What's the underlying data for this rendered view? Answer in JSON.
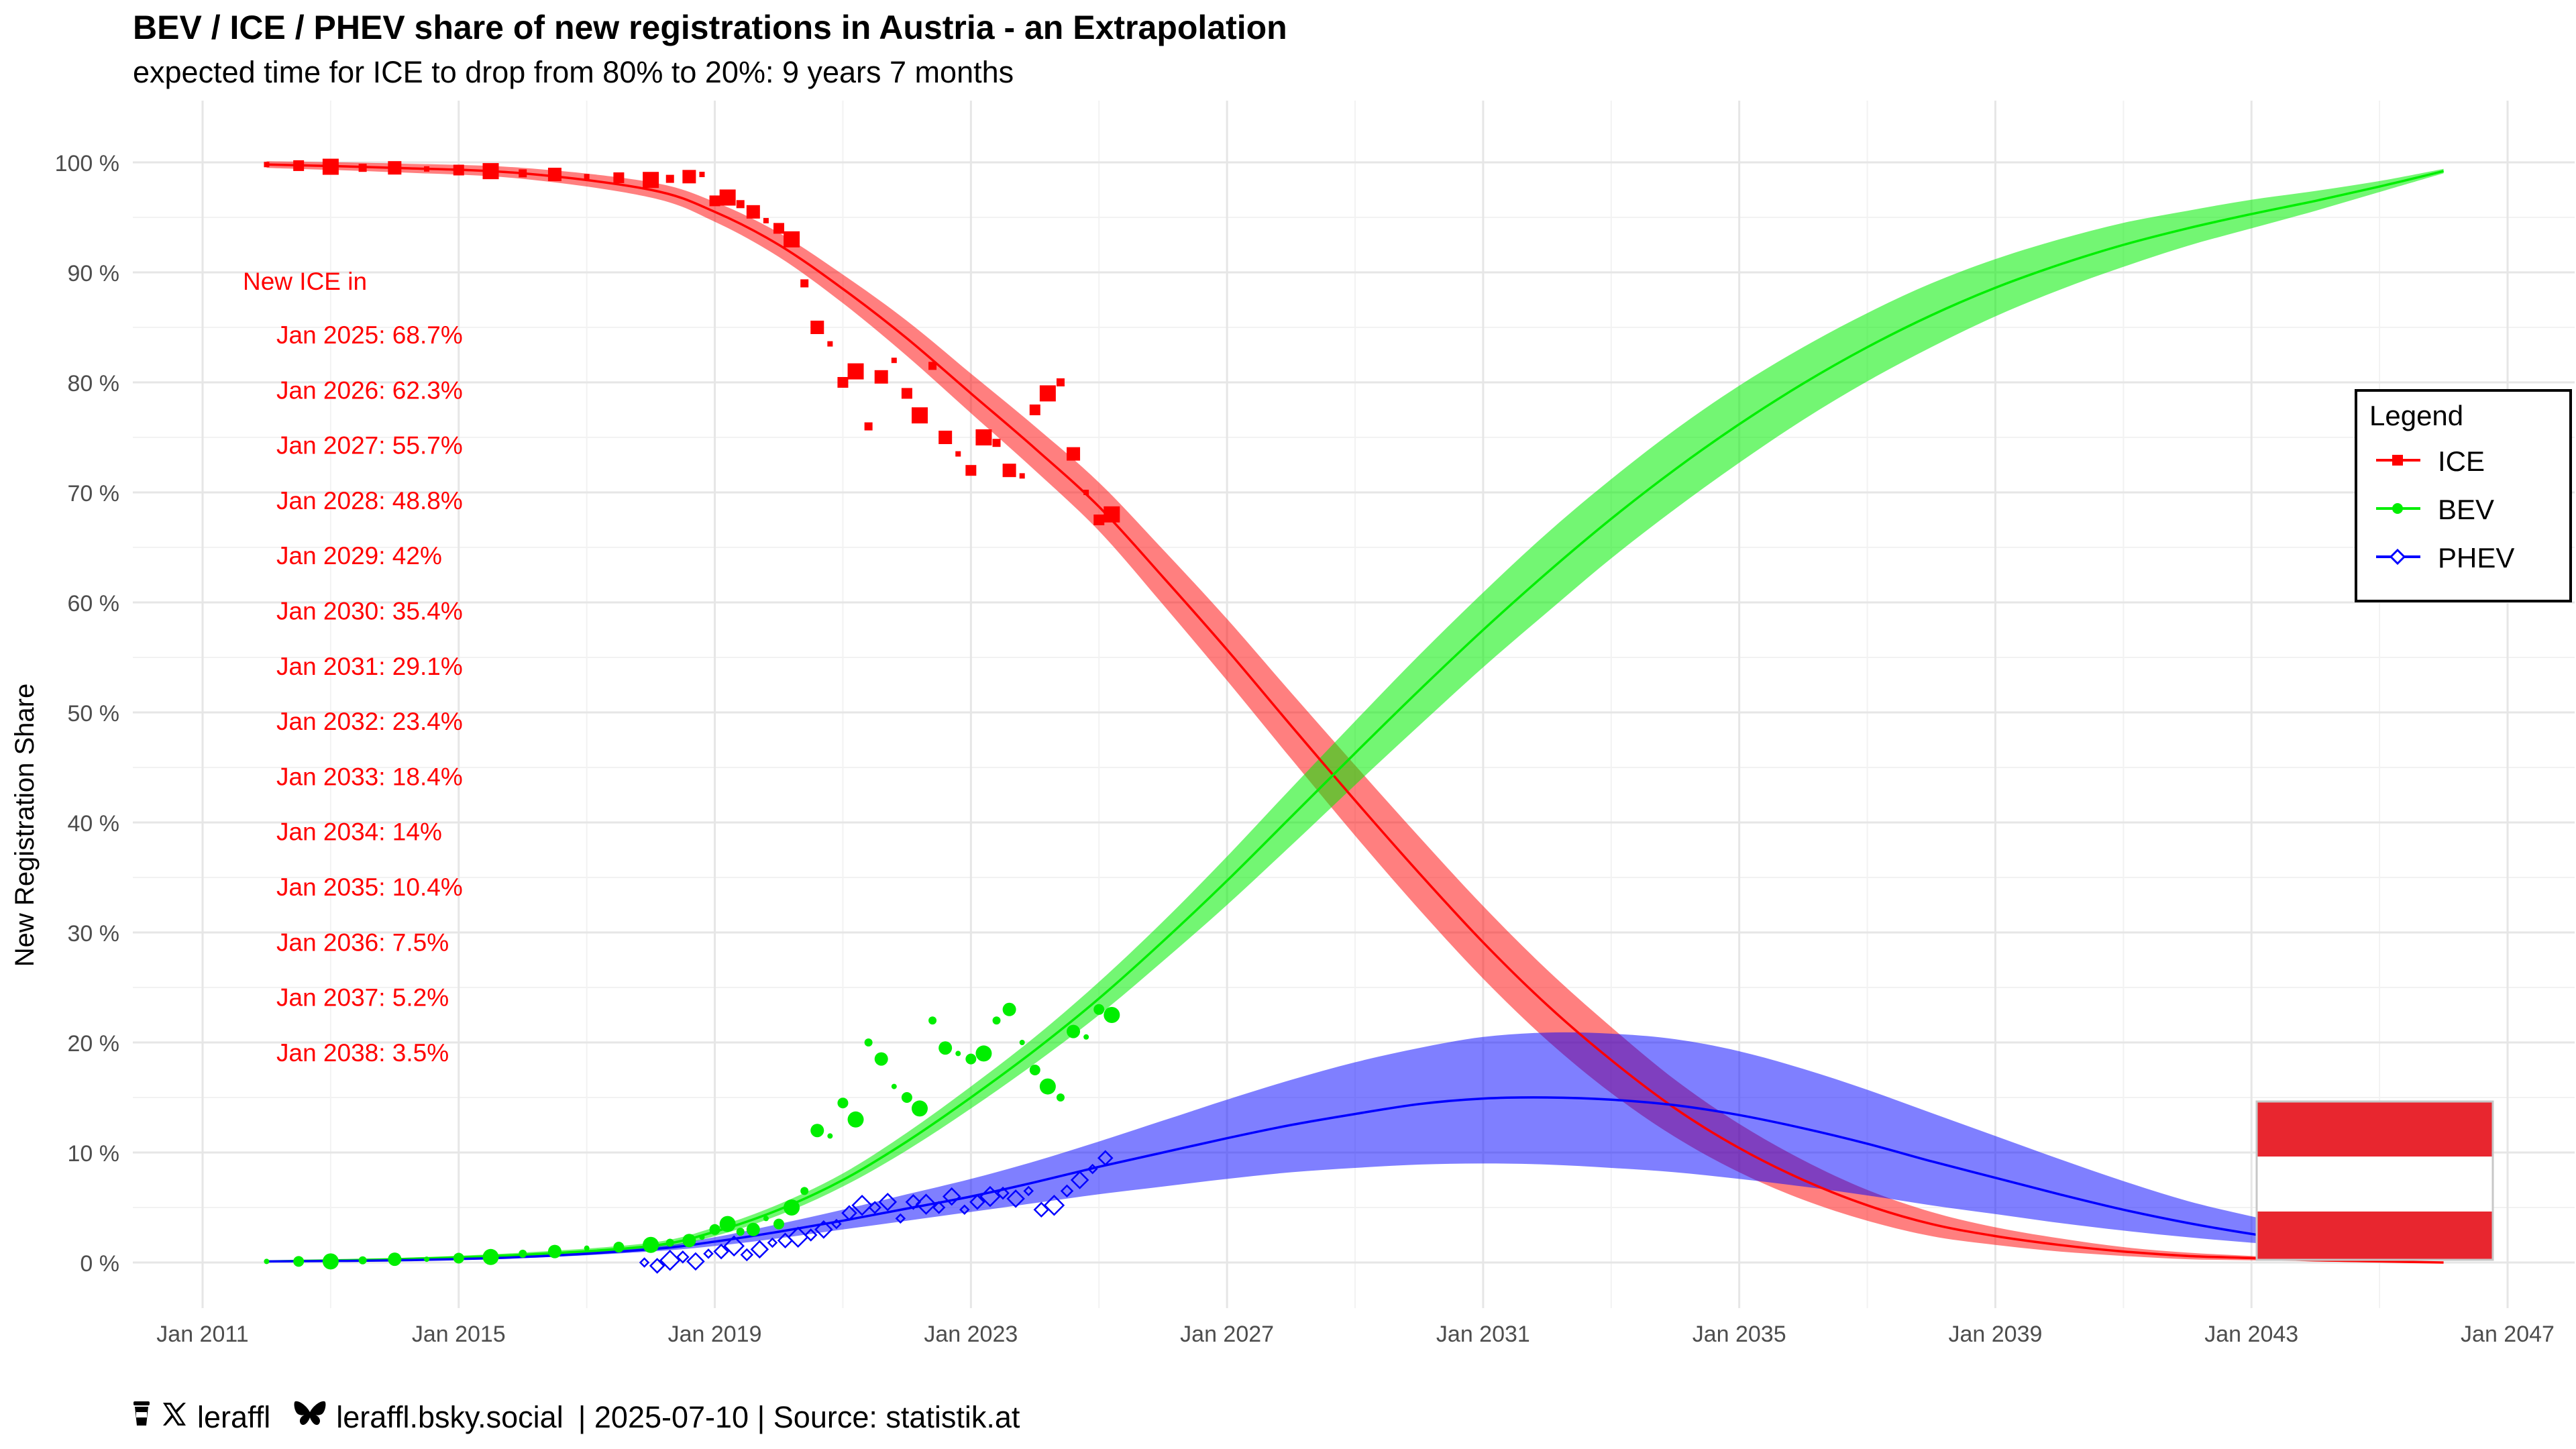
{
  "title": "BEV / ICE / PHEV share of new registrations in Austria - an Extrapolation",
  "subtitle": "expected time for ICE to drop from 80% to 20%: 9 years 7 months",
  "footer": {
    "handle": "leraffl",
    "bluesky": "leraffl.bsky.social",
    "meta": "| 2025-07-10 | Source: statistik.at"
  },
  "legend": {
    "title": "Legend",
    "items": [
      {
        "label": "ICE",
        "color": "#ff0000",
        "marker": "square"
      },
      {
        "label": "BEV",
        "color": "#00ee00",
        "marker": "circle"
      },
      {
        "label": "PHEV",
        "color": "#0000ff",
        "marker": "diamond"
      }
    ]
  },
  "ice_forecast": {
    "heading": "New ICE in",
    "entries": [
      "Jan 2025: 68.7%",
      "Jan 2026: 62.3%",
      "Jan 2027: 55.7%",
      "Jan 2028: 48.8%",
      "Jan 2029: 42%",
      "Jan 2030: 35.4%",
      "Jan 2031: 29.1%",
      "Jan 2032: 23.4%",
      "Jan 2033: 18.4%",
      "Jan 2034: 14%",
      "Jan 2035: 10.4%",
      "Jan 2036: 7.5%",
      "Jan 2037: 5.2%",
      "Jan 2038: 3.5%"
    ]
  },
  "chart_data": {
    "type": "scatter",
    "ylabel": "New Registration Share",
    "xlabel": "",
    "x_ticks": [
      "Jan 2011",
      "Jan 2015",
      "Jan 2019",
      "Jan 2023",
      "Jan 2027",
      "Jan 2031",
      "Jan 2035",
      "Jan 2039",
      "Jan 2043",
      "Jan 2047"
    ],
    "x_tick_years": [
      2011,
      2015,
      2019,
      2023,
      2027,
      2031,
      2035,
      2039,
      2043,
      2047
    ],
    "y_ticks": [
      "0 %",
      "10 %",
      "20 %",
      "30 %",
      "40 %",
      "50 %",
      "60 %",
      "70 %",
      "80 %",
      "90 %",
      "100 %"
    ],
    "y_tick_values": [
      0,
      10,
      20,
      30,
      40,
      50,
      60,
      70,
      80,
      90,
      100
    ],
    "xlim": [
      2010.9,
      2047.1
    ],
    "ylim": [
      -4,
      104
    ],
    "grid": true,
    "legend_position": "right",
    "series": [
      {
        "name": "ICE",
        "color": "#ff0000",
        "observed": {
          "x": [
            2012.0,
            2012.5,
            2013.0,
            2013.5,
            2014.0,
            2014.5,
            2015.0,
            2015.5,
            2016.0,
            2016.5,
            2017.0,
            2017.5,
            2018.0,
            2018.3,
            2018.6,
            2018.8,
            2019.0,
            2019.2,
            2019.4,
            2019.6,
            2019.8,
            2020.0,
            2020.2,
            2020.4,
            2020.6,
            2020.8,
            2021.0,
            2021.2,
            2021.4,
            2021.6,
            2021.8,
            2022.0,
            2022.2,
            2022.4,
            2022.6,
            2022.8,
            2023.0,
            2023.2,
            2023.4,
            2023.6,
            2023.8,
            2024.0,
            2024.2,
            2024.4,
            2024.6,
            2024.8,
            2025.0,
            2025.2
          ],
          "y": [
            99.8,
            99.7,
            99.6,
            99.5,
            99.5,
            99.4,
            99.3,
            99.2,
            99.0,
            98.9,
            98.7,
            98.6,
            98.4,
            98.5,
            98.7,
            98.9,
            96.5,
            96.8,
            96.2,
            95.5,
            94.7,
            94.0,
            93.0,
            89.0,
            85.0,
            83.5,
            80.0,
            81.0,
            76.0,
            80.5,
            82.0,
            79.0,
            77.0,
            81.5,
            75.0,
            73.5,
            72.0,
            75.0,
            74.5,
            72.0,
            71.5,
            77.5,
            79.0,
            80.0,
            73.5,
            70.0,
            67.5,
            68.0
          ]
        },
        "trend": {
          "x": [
            2012,
            2014,
            2016,
            2018,
            2019,
            2020,
            2021,
            2022,
            2023,
            2024,
            2025,
            2026,
            2027,
            2028,
            2029,
            2030,
            2031,
            2032,
            2033,
            2034,
            2035,
            2036,
            2037,
            2038,
            2039,
            2040,
            2041,
            2042,
            2043,
            2044,
            2045,
            2046
          ],
          "y": [
            99.8,
            99.5,
            99.0,
            97.5,
            95.5,
            92.5,
            88.5,
            84.0,
            79.0,
            74.0,
            68.7,
            62.3,
            55.7,
            48.8,
            42.0,
            35.4,
            29.1,
            23.4,
            18.4,
            14.0,
            10.4,
            7.5,
            5.2,
            3.5,
            2.4,
            1.6,
            1.0,
            0.6,
            0.4,
            0.2,
            0.1,
            0.0
          ],
          "band_halfwidth": [
            0.3,
            0.4,
            0.5,
            0.7,
            0.9,
            1.1,
            1.3,
            1.6,
            1.8,
            2.0,
            2.2,
            2.5,
            2.8,
            3.0,
            3.2,
            3.3,
            3.3,
            3.2,
            3.0,
            2.6,
            2.2,
            1.8,
            1.4,
            1.1,
            0.8,
            0.6,
            0.4,
            0.3,
            0.2,
            0.1,
            0.1,
            0.0
          ]
        }
      },
      {
        "name": "BEV",
        "color": "#00ee00",
        "observed": {
          "x": [
            2012.0,
            2012.5,
            2013.0,
            2013.5,
            2014.0,
            2014.5,
            2015.0,
            2015.5,
            2016.0,
            2016.5,
            2017.0,
            2017.5,
            2018.0,
            2018.3,
            2018.6,
            2018.8,
            2019.0,
            2019.2,
            2019.4,
            2019.6,
            2019.8,
            2020.0,
            2020.2,
            2020.4,
            2020.6,
            2020.8,
            2021.0,
            2021.2,
            2021.4,
            2021.6,
            2021.8,
            2022.0,
            2022.2,
            2022.4,
            2022.6,
            2022.8,
            2023.0,
            2023.2,
            2023.4,
            2023.6,
            2023.8,
            2024.0,
            2024.2,
            2024.4,
            2024.6,
            2024.8,
            2025.0,
            2025.2
          ],
          "y": [
            0.1,
            0.1,
            0.1,
            0.2,
            0.3,
            0.3,
            0.4,
            0.5,
            0.8,
            1.0,
            1.3,
            1.4,
            1.6,
            1.8,
            2.0,
            2.3,
            3.0,
            3.5,
            2.8,
            3.0,
            4.0,
            3.5,
            5.0,
            6.5,
            12.0,
            11.5,
            14.5,
            13.0,
            20.0,
            18.5,
            16.0,
            15.0,
            14.0,
            22.0,
            19.5,
            19.0,
            18.5,
            19.0,
            22.0,
            23.0,
            20.0,
            17.5,
            16.0,
            15.0,
            21.0,
            20.5,
            23.0,
            22.5
          ]
        },
        "trend": {
          "x": [
            2012,
            2014,
            2016,
            2018,
            2019,
            2020,
            2021,
            2022,
            2023,
            2024,
            2025,
            2026,
            2027,
            2028,
            2029,
            2030,
            2031,
            2032,
            2033,
            2034,
            2035,
            2036,
            2037,
            2038,
            2039,
            2040,
            2041,
            2042,
            2043,
            2044,
            2045,
            2046
          ],
          "y": [
            0.1,
            0.3,
            0.7,
            1.5,
            2.8,
            4.8,
            7.5,
            11.0,
            15.0,
            19.3,
            24.0,
            29.2,
            34.7,
            40.5,
            46.3,
            52.0,
            57.5,
            62.7,
            67.6,
            72.1,
            76.2,
            79.9,
            83.2,
            86.1,
            88.6,
            90.7,
            92.5,
            94.0,
            95.3,
            96.5,
            97.8,
            99.2
          ],
          "band_halfwidth": [
            0.0,
            0.1,
            0.2,
            0.3,
            0.4,
            0.5,
            0.6,
            0.8,
            1.0,
            1.2,
            1.5,
            1.8,
            2.2,
            2.6,
            2.9,
            3.2,
            3.4,
            3.6,
            3.6,
            3.6,
            3.5,
            3.3,
            3.1,
            2.9,
            2.6,
            2.3,
            2.0,
            1.6,
            1.3,
            0.9,
            0.5,
            0.2
          ]
        }
      },
      {
        "name": "PHEV",
        "color": "#0000ff",
        "observed": {
          "x": [
            2017.9,
            2018.1,
            2018.3,
            2018.5,
            2018.7,
            2018.9,
            2019.1,
            2019.3,
            2019.5,
            2019.7,
            2019.9,
            2020.1,
            2020.3,
            2020.5,
            2020.7,
            2020.9,
            2021.1,
            2021.3,
            2021.5,
            2021.7,
            2021.9,
            2022.1,
            2022.3,
            2022.5,
            2022.7,
            2022.9,
            2023.1,
            2023.3,
            2023.5,
            2023.7,
            2023.9,
            2024.1,
            2024.3,
            2024.5,
            2024.7,
            2024.9,
            2025.1
          ],
          "y": [
            0.0,
            -0.3,
            0.2,
            0.5,
            0.1,
            0.8,
            1.0,
            1.5,
            0.7,
            1.2,
            1.8,
            2.0,
            2.3,
            2.5,
            3.0,
            3.5,
            4.5,
            5.2,
            5.0,
            5.5,
            4.0,
            5.5,
            5.3,
            5.0,
            6.0,
            4.8,
            5.5,
            6.0,
            6.3,
            5.8,
            6.5,
            4.8,
            5.2,
            6.5,
            7.5,
            8.5,
            9.5
          ]
        },
        "trend": {
          "x": [
            2012,
            2014,
            2016,
            2018,
            2019,
            2020,
            2021,
            2022,
            2023,
            2024,
            2025,
            2026,
            2027,
            2028,
            2029,
            2030,
            2031,
            2032,
            2033,
            2034,
            2035,
            2036,
            2037,
            2038,
            2039,
            2040,
            2041,
            2042,
            2043,
            2044,
            2045
          ],
          "y": [
            0.1,
            0.2,
            0.5,
            1.2,
            1.9,
            2.8,
            3.8,
            4.9,
            6.0,
            7.3,
            8.7,
            10.0,
            11.3,
            12.5,
            13.5,
            14.4,
            14.9,
            15.0,
            14.8,
            14.3,
            13.4,
            12.2,
            10.8,
            9.2,
            7.7,
            6.2,
            4.8,
            3.6,
            2.6,
            1.8,
            1.2
          ],
          "band_lower": [
            0.1,
            0.2,
            0.4,
            1.0,
            1.5,
            2.2,
            3.0,
            3.8,
            4.6,
            5.4,
            6.2,
            6.9,
            7.6,
            8.2,
            8.6,
            8.9,
            9.0,
            8.9,
            8.6,
            8.2,
            7.6,
            6.9,
            6.1,
            5.2,
            4.4,
            3.6,
            2.9,
            2.3,
            1.8,
            1.4,
            1.0
          ],
          "band_upper": [
            0.1,
            0.2,
            0.6,
            1.4,
            2.3,
            3.5,
            4.8,
            6.2,
            7.6,
            9.2,
            11.0,
            12.9,
            14.8,
            16.6,
            18.2,
            19.5,
            20.5,
            20.9,
            20.8,
            20.3,
            19.2,
            17.6,
            15.7,
            13.6,
            11.5,
            9.4,
            7.4,
            5.6,
            4.2,
            3.0,
            2.2
          ]
        }
      }
    ]
  },
  "flag": {
    "colors": [
      "#e8262f",
      "#ffffff",
      "#e8262f"
    ]
  }
}
